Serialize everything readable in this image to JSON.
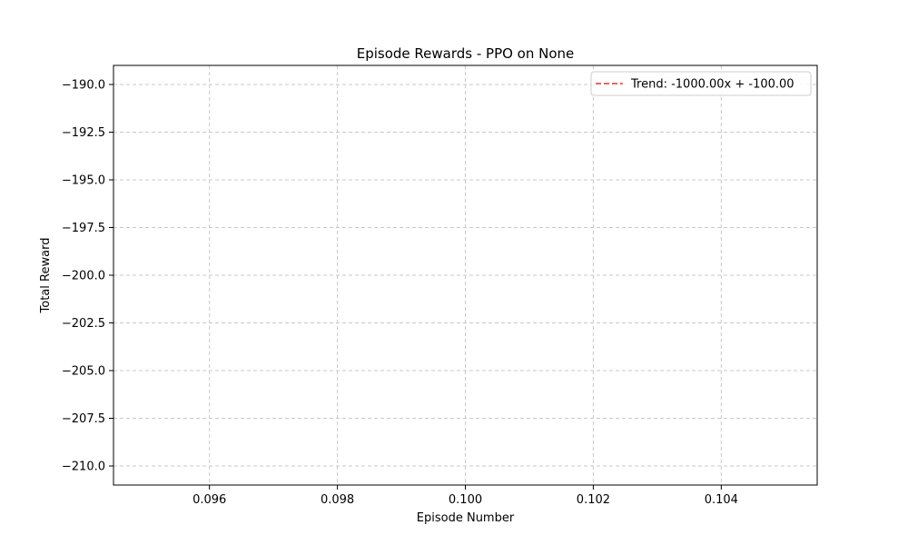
{
  "chart_data": {
    "type": "line",
    "title": "Episode Rewards - PPO on None",
    "xlabel": "Episode Number",
    "ylabel": "Total Reward",
    "xlim": [
      0.0945,
      0.1055
    ],
    "ylim": [
      -211.0,
      -189.0
    ],
    "x_ticks": [
      0.096,
      0.098,
      0.1,
      0.102,
      0.104
    ],
    "x_tick_labels": [
      "0.096",
      "0.098",
      "0.100",
      "0.102",
      "0.104"
    ],
    "y_ticks": [
      -190.0,
      -192.5,
      -195.0,
      -197.5,
      -200.0,
      -202.5,
      -205.0,
      -207.5,
      -210.0
    ],
    "y_tick_labels": [
      "−190.0",
      "−192.5",
      "−195.0",
      "−197.5",
      "−200.0",
      "−202.5",
      "−205.0",
      "−207.5",
      "−210.0"
    ],
    "grid": true,
    "legend_position": "top-right",
    "series": [
      {
        "name": "Trend: -1000.00x + -100.00",
        "style": "dashed",
        "color": "#e8352e",
        "slope": -1000.0,
        "intercept": -100.0,
        "x": [],
        "y": []
      }
    ]
  }
}
